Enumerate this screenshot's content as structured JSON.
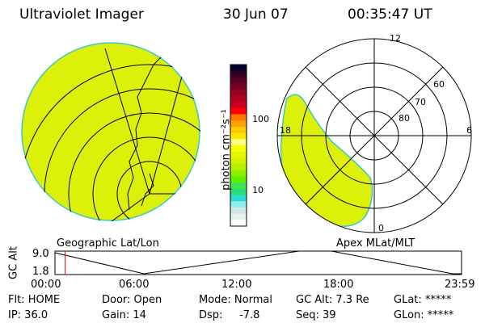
{
  "header": {
    "title": "Ultraviolet Imager",
    "date": "30 Jun 07",
    "time": "00:35:47 UT"
  },
  "colorbar": {
    "label": "photon cm⁻²s⁻¹",
    "ticks": [
      "100",
      "10"
    ],
    "colors": [
      "#000033",
      "#330022",
      "#550022",
      "#770022",
      "#990022",
      "#b00022",
      "#cc0022",
      "#ff0000",
      "#ff7700",
      "#ffa000",
      "#ffc800",
      "#ffe600",
      "#ffff80",
      "#f4ff00",
      "#e6f500",
      "#d2f000",
      "#b4f000",
      "#8cf000",
      "#5af000",
      "#3ce650",
      "#28dc78",
      "#28dcd2",
      "#8ceef0",
      "#d2e6e6",
      "#e6f0f0",
      "#ffffff"
    ]
  },
  "polar": {
    "labels": {
      "mlt_12": "12",
      "mlt_6": "6",
      "mlt_0": "0",
      "mlt_18": "18",
      "lat_60": "60",
      "lat_70": "70",
      "lat_80": "80"
    }
  },
  "panel_labels": {
    "left": "Geographic Lat/Lon",
    "right": "Apex MLat/MLT"
  },
  "alt_plot": {
    "ylabel": "GC Alt",
    "yticks": [
      "9.0",
      "1.8"
    ],
    "xticks": [
      "00:00",
      "06:00",
      "12:00",
      "18:00",
      "23:59"
    ],
    "current_time_fraction": 0.025
  },
  "status": {
    "flt": "Flt: HOME",
    "ip": "IP: 36.0",
    "door": "Door: Open",
    "gain": "Gain: 14",
    "mode": "Mode: Normal",
    "dsp": "Dsp:     -7.8",
    "gcalt": "GC Alt: 7.3 Re",
    "seq": "Seq: 39",
    "glat": "GLat: *****",
    "glon": "GLon: *****"
  },
  "colors": {
    "emission": "#dcf00a",
    "edge": "#3cc8c8"
  }
}
